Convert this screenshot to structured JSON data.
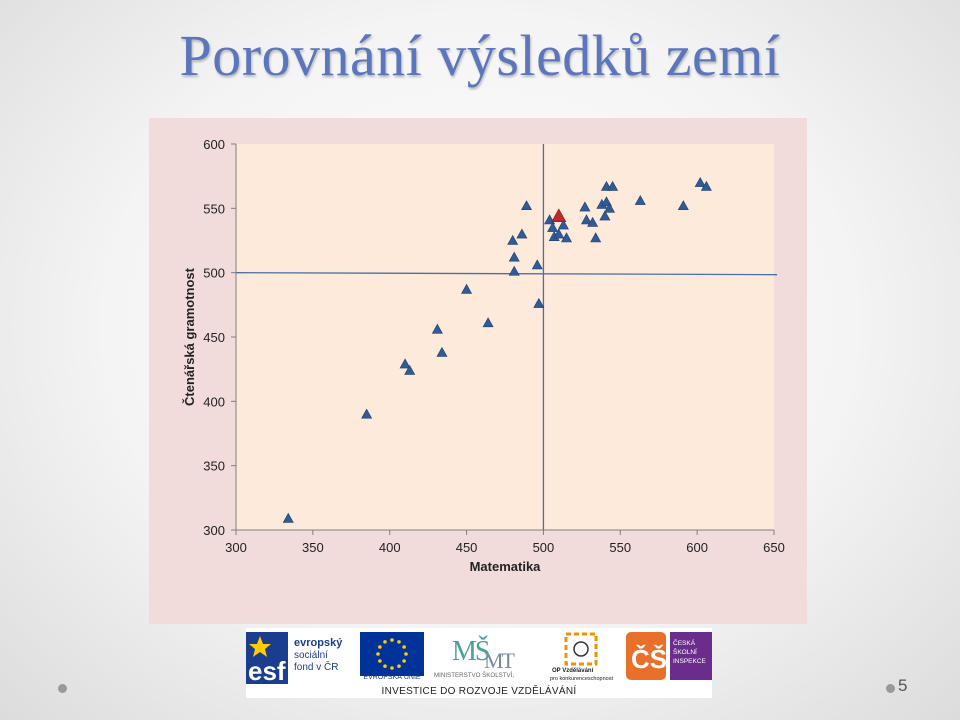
{
  "slide": {
    "title": "Porovnání výsledků zemí",
    "page_number": "5"
  },
  "chart_data": {
    "type": "scatter",
    "title": "",
    "xlabel": "Matematika",
    "ylabel": "Čtenářská gramotnost",
    "xlim": [
      300,
      650
    ],
    "ylim": [
      300,
      600
    ],
    "x_ticks": [
      300,
      350,
      400,
      450,
      500,
      550,
      600,
      650
    ],
    "y_ticks": [
      300,
      350,
      400,
      450,
      500,
      550,
      600
    ],
    "grid": false,
    "reference_lines": {
      "x": 500,
      "y": 500
    },
    "series": [
      {
        "color": "#2e5c99",
        "points": [
          [
            334,
            309
          ],
          [
            385,
            390
          ],
          [
            410,
            429
          ],
          [
            413,
            424
          ],
          [
            431,
            456
          ],
          [
            434,
            438
          ],
          [
            450,
            487
          ],
          [
            464,
            461
          ],
          [
            481,
            501
          ],
          [
            480,
            525
          ],
          [
            481,
            512
          ],
          [
            486,
            530
          ],
          [
            489,
            552
          ],
          [
            496,
            506
          ],
          [
            497,
            476
          ],
          [
            504,
            541
          ],
          [
            506,
            535
          ],
          [
            507,
            528
          ],
          [
            510,
            530
          ],
          [
            513,
            537
          ],
          [
            515,
            527
          ],
          [
            527,
            551
          ],
          [
            528,
            541
          ],
          [
            532,
            539
          ],
          [
            534,
            527
          ],
          [
            538,
            553
          ],
          [
            540,
            544
          ],
          [
            541,
            555
          ],
          [
            543,
            550
          ],
          [
            541,
            567
          ],
          [
            545,
            567
          ],
          [
            563,
            556
          ],
          [
            591,
            552
          ],
          [
            602,
            570
          ],
          [
            606,
            567
          ]
        ]
      },
      {
        "color": "#c0282e",
        "points": [
          [
            510,
            544
          ]
        ]
      }
    ]
  },
  "footer": {
    "esf_logo": "esf evropský sociální fond v ČR",
    "eu_logo": "EVROPSKÁ UNIE",
    "msmt_logo": "MINISTERSTVO ŠKOLSTVÍ, MLÁDEŽE A TĚLOVÝCHOVY",
    "op_logo": "OP Vzdělávání pro konkurenceschopnost",
    "csi_logo": "ČESKÁ ŠKOLNÍ INSPEKCE",
    "slogan": "INVESTICE DO ROZVOJE VZDĚLÁVÁNÍ",
    "colors": {
      "esf_blue": "#1b3d8f",
      "eu_blue": "#003399",
      "eu_gold": "#ffcc00",
      "op_orange": "#f39200",
      "csi_orange": "#e8702a",
      "csi_purple": "#6b2d8b"
    }
  }
}
